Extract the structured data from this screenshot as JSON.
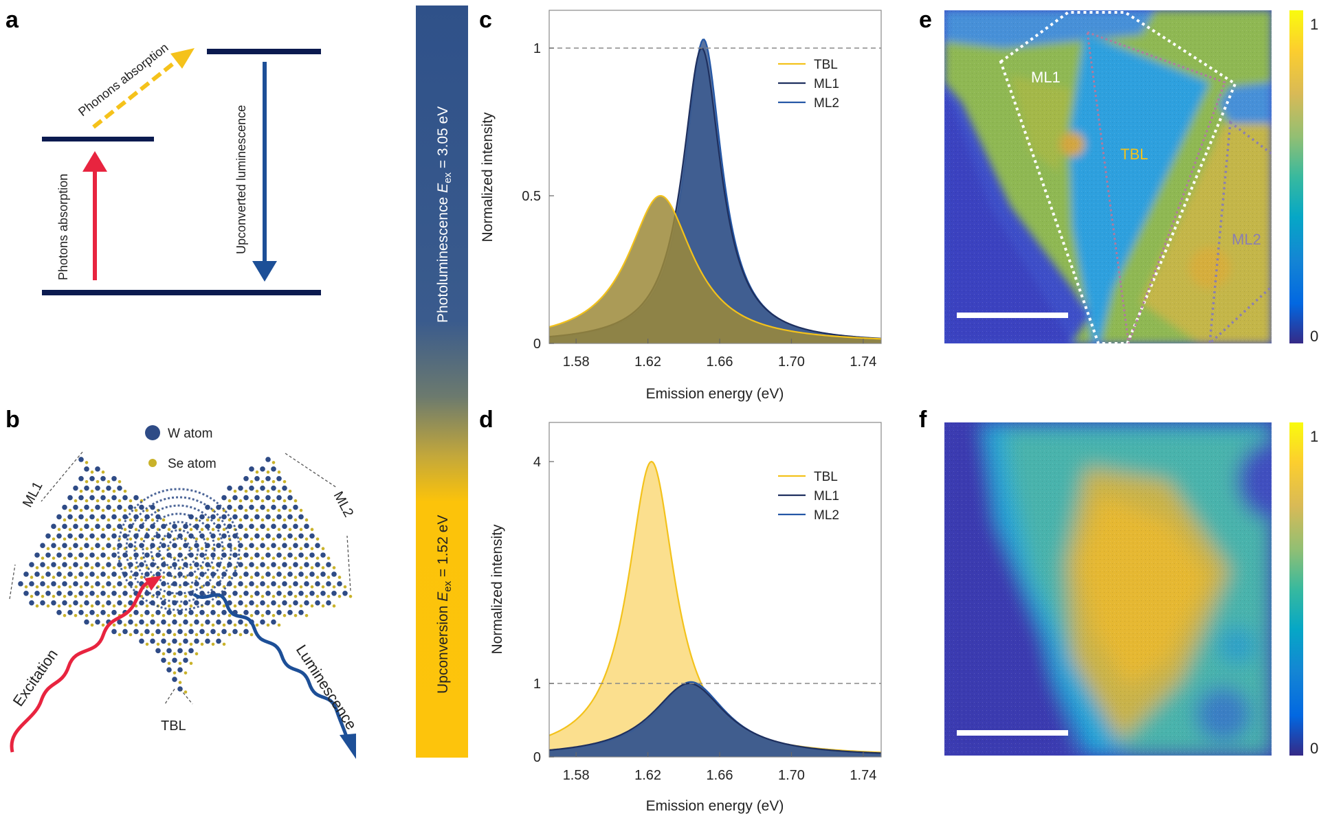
{
  "panels": {
    "a": "a",
    "b": "b",
    "c": "c",
    "d": "d",
    "e": "e",
    "f": "f"
  },
  "panel_a": {
    "phonons_absorption": "Phonons absorption",
    "photons_absorption": "Photons absorption",
    "upconverted_luminescence": "Upconverted luminescence",
    "colors": {
      "level": "#0b1a4f",
      "photon_arrow": "#e8243f",
      "phonon_arrow": "#f5c21b",
      "luminescence_arrow": "#1d4f97"
    }
  },
  "panel_b": {
    "legend_w": "W atom",
    "legend_se": "Se atom",
    "ml1": "ML1",
    "ml2": "ML2",
    "tbl": "TBL",
    "excitation": "Excitation",
    "luminescence": "Luminescence",
    "colors": {
      "w_atom": "#2e4b86",
      "se_atom": "#c9b22a",
      "excitation": "#e8243f",
      "luminescence": "#1d4f97"
    }
  },
  "colorbar_vertical": {
    "top_label_pre": "Photoluminescence ",
    "top_label_sym": "E",
    "top_label_sub": "ex",
    "top_label_post": " = 3.05 eV",
    "bottom_label_pre": "Upconversion ",
    "bottom_label_sym": "E",
    "bottom_label_sub": "ex",
    "bottom_label_post": " = 1.52 eV",
    "colors": {
      "top": "#2f5189",
      "bottom": "#fcc30a"
    }
  },
  "chart_data": [
    {
      "id": "c",
      "type": "area",
      "title": "",
      "xlabel": "Emission energy (eV)",
      "ylabel": "Normalized intensity",
      "xlim": [
        1.565,
        1.75
      ],
      "ylim": [
        0,
        1.1
      ],
      "xticks": [
        1.58,
        1.62,
        1.66,
        1.7,
        1.74
      ],
      "xtick_labels": [
        "1.58",
        "1.62",
        "1.66",
        "1.70",
        "1.74"
      ],
      "yticks": [
        0,
        0.5,
        1
      ],
      "ytick_labels": [
        "0",
        "0.5",
        "1"
      ],
      "reference_line": 1,
      "legend_position": "top-right",
      "series": [
        {
          "name": "TBL",
          "color": "#f3c21b",
          "fill": "#9c8a3a",
          "peak": 1.627,
          "amplitude": 0.5,
          "width": 0.022,
          "baseline": 0.0
        },
        {
          "name": "ML1",
          "color": "#1e2f5e",
          "fill": "#3c5a8e",
          "peak": 1.65,
          "amplitude": 1.0,
          "width": 0.013,
          "baseline": 0.0
        },
        {
          "name": "ML2",
          "color": "#2457a6",
          "fill": "#3c5a8e",
          "peak": 1.651,
          "amplitude": 1.03,
          "width": 0.0125,
          "baseline": 0.0
        }
      ]
    },
    {
      "id": "d",
      "type": "area",
      "title": "",
      "xlabel": "Emission energy (eV)",
      "ylabel": "Normalized intensity",
      "xlim": [
        1.565,
        1.75
      ],
      "ylim": [
        0,
        4.4
      ],
      "yscale": "break",
      "xticks": [
        1.58,
        1.62,
        1.66,
        1.7,
        1.74
      ],
      "xtick_labels": [
        "1.58",
        "1.62",
        "1.66",
        "1.70",
        "1.74"
      ],
      "yticks": [
        0,
        1,
        4
      ],
      "ytick_labels": [
        "0",
        "1",
        "4"
      ],
      "reference_line": 1,
      "legend_position": "top-right",
      "series": [
        {
          "name": "TBL",
          "color": "#f3c21b",
          "fill": "#fad97a",
          "peak": 1.622,
          "amplitude": 4.0,
          "width": 0.016
        },
        {
          "name": "ML1",
          "color": "#1e2f5e",
          "fill": "#3c5a8e",
          "peak": 1.643,
          "amplitude": 1.0,
          "width": 0.025
        },
        {
          "name": "ML2",
          "color": "#2457a6",
          "fill": "#3c5a8e",
          "peak": 1.644,
          "amplitude": 1.02,
          "width": 0.024
        }
      ]
    }
  ],
  "panel_e": {
    "ml1": "ML1",
    "tbl": "TBL",
    "ml2": "ML2",
    "scale_max": "1",
    "scale_min": "0"
  },
  "panel_f": {
    "scale_max": "1",
    "scale_min": "0"
  }
}
